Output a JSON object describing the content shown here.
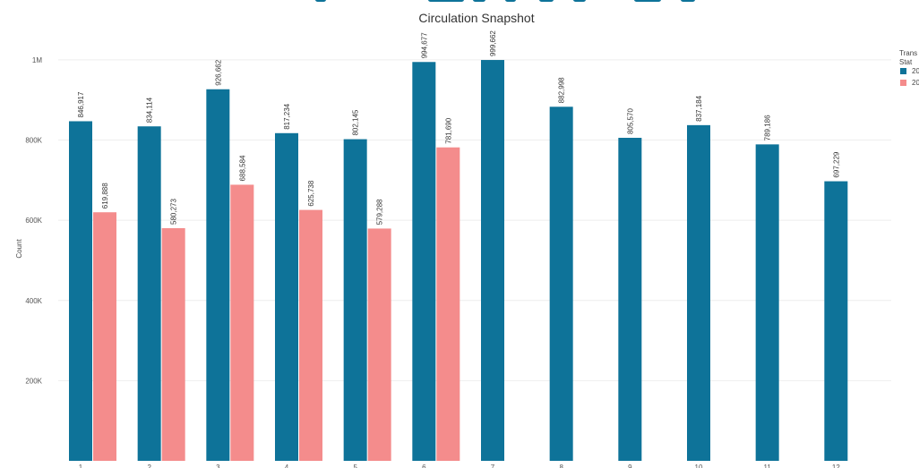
{
  "chart_data": {
    "type": "bar",
    "title": "Circulation Snapshot",
    "xlabel": "",
    "ylabel": "Count",
    "categories": [
      "1",
      "2",
      "3",
      "4",
      "5",
      "6",
      "7",
      "8",
      "9",
      "10",
      "11",
      "12"
    ],
    "series": [
      {
        "name": "20",
        "color": "#0e7399",
        "values": [
          846917,
          834114,
          926662,
          817234,
          802145,
          994677,
          999662,
          882998,
          805570,
          837184,
          789186,
          697229
        ],
        "labels": [
          "846,917",
          "834,114",
          "926,662",
          "817,234",
          "802,145",
          "994,677",
          "999,662",
          "882,998",
          "805,570",
          "837,184",
          "789,186",
          "697,229"
        ]
      },
      {
        "name": "20",
        "color": "#f48c8c",
        "values": [
          619888,
          580273,
          688584,
          625738,
          579288,
          781690,
          null,
          null,
          null,
          null,
          null,
          null
        ],
        "labels": [
          "619,888",
          "580,273",
          "688,584",
          "625,738",
          "579,288",
          "781,690",
          "",
          "",
          "",
          "",
          "",
          ""
        ]
      }
    ],
    "ylim": [
      0,
      1060000
    ],
    "yticks": [
      200000,
      400000,
      600000,
      800000,
      1000000
    ],
    "ytick_labels": [
      "200K",
      "400K",
      "600K",
      "800K",
      "1M"
    ],
    "legend": {
      "title_lines": [
        "Trans",
        "Stat"
      ],
      "placement": "top-right"
    },
    "grid": true
  }
}
